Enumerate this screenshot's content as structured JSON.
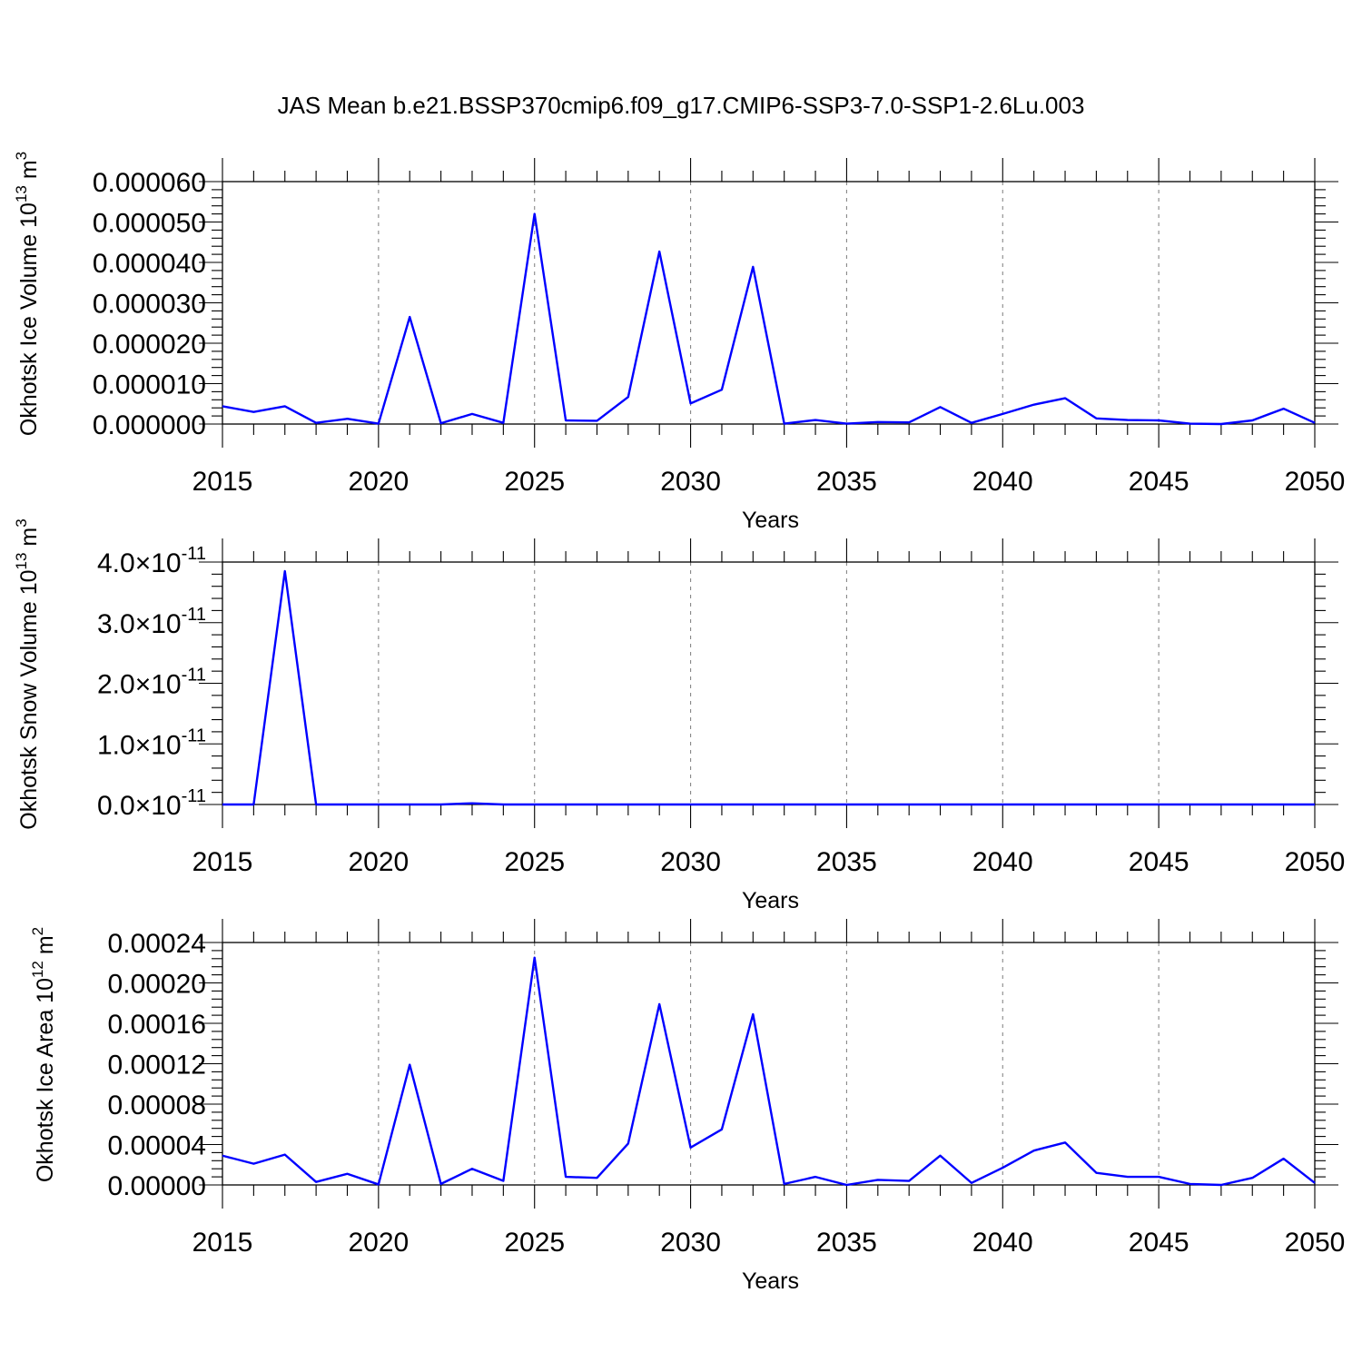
{
  "title": "JAS Mean b.e21.BSSP370cmip6.f09_g17.CMIP6-SSP3-7.0-SSP1-2.6Lu.003",
  "colors": {
    "line": "#0000ff",
    "grid": "#888888",
    "axis": "#000000"
  },
  "chart_data": [
    {
      "type": "line",
      "xlabel": "Years",
      "ylabel": "Okhotsk Ice Volume 10",
      "ylabel_sup": "13",
      "ylabel_unit": "m",
      "ylabel_unit_sup": "3",
      "xlim": [
        2015,
        2050
      ],
      "ylim": [
        0,
        6e-05
      ],
      "xticks": [
        "2015",
        "2020",
        "2025",
        "2030",
        "2035",
        "2040",
        "2045",
        "2050"
      ],
      "yticks": [
        {
          "value": 0,
          "label": "0.000000"
        },
        {
          "value": 1e-05,
          "label": "0.000010"
        },
        {
          "value": 2e-05,
          "label": "0.000020"
        },
        {
          "value": 3e-05,
          "label": "0.000030"
        },
        {
          "value": 4e-05,
          "label": "0.000040"
        },
        {
          "value": 5e-05,
          "label": "0.000050"
        },
        {
          "value": 6e-05,
          "label": "0.000060"
        }
      ],
      "grid_x": true,
      "series": [
        {
          "x": [
            2015,
            2016,
            2017,
            2018,
            2019,
            2020,
            2021,
            2022,
            2023,
            2024,
            2025,
            2026,
            2027,
            2028,
            2029,
            2030,
            2031,
            2032,
            2033,
            2034,
            2035,
            2036,
            2037,
            2038,
            2039,
            2040,
            2041,
            2042,
            2043,
            2044,
            2045,
            2046,
            2047,
            2048,
            2049,
            2050
          ],
          "y": [
            4.4e-06,
            3e-06,
            4.4e-06,
            3e-07,
            1.3e-06,
            1e-07,
            2.65e-05,
            2e-07,
            2.5e-06,
            3e-07,
            5.2e-05,
            9e-07,
            8e-07,
            6.7e-06,
            4.27e-05,
            5.1e-06,
            8.5e-06,
            3.89e-05,
            1e-07,
            1e-06,
            1e-07,
            5e-07,
            4e-07,
            4.2e-06,
            3e-07,
            2.5e-06,
            4.8e-06,
            6.4e-06,
            1.4e-06,
            1e-06,
            9e-07,
            1e-07,
            0.0,
            9e-07,
            3.8e-06,
            3e-07
          ]
        }
      ]
    },
    {
      "type": "line",
      "xlabel": "Years",
      "ylabel": "Okhotsk Snow Volume 10",
      "ylabel_sup": "13",
      "ylabel_unit": "m",
      "ylabel_unit_sup": "3",
      "xlim": [
        2015,
        2050
      ],
      "ylim": [
        0,
        4e-11
      ],
      "xticks": [
        "2015",
        "2020",
        "2025",
        "2030",
        "2035",
        "2040",
        "2045",
        "2050"
      ],
      "yticks": [
        {
          "value": 0,
          "label": "0.0×10",
          "exp": "-11"
        },
        {
          "value": 1e-11,
          "label": "1.0×10",
          "exp": "-11"
        },
        {
          "value": 2e-11,
          "label": "2.0×10",
          "exp": "-11"
        },
        {
          "value": 3e-11,
          "label": "3.0×10",
          "exp": "-11"
        },
        {
          "value": 4e-11,
          "label": "4.0×10",
          "exp": "-11"
        }
      ],
      "grid_x": true,
      "series": [
        {
          "x": [
            2015,
            2016,
            2017,
            2018,
            2019,
            2020,
            2021,
            2022,
            2023,
            2024,
            2025,
            2026,
            2027,
            2028,
            2029,
            2030,
            2031,
            2032,
            2033,
            2034,
            2035,
            2036,
            2037,
            2038,
            2039,
            2040,
            2041,
            2042,
            2043,
            2044,
            2045,
            2046,
            2047,
            2048,
            2049,
            2050
          ],
          "y": [
            0,
            0,
            3.85e-11,
            0,
            0,
            0,
            0,
            0,
            2e-13,
            0,
            0,
            0,
            0,
            0,
            0,
            0,
            0,
            0,
            0,
            0,
            0,
            0,
            0,
            0,
            0,
            0,
            0,
            0,
            0,
            0,
            0,
            0,
            0,
            0,
            0,
            0
          ]
        }
      ]
    },
    {
      "type": "line",
      "xlabel": "Years",
      "ylabel": "Okhotsk Ice Area 10",
      "ylabel_sup": "12",
      "ylabel_unit": "m",
      "ylabel_unit_sup": "2",
      "xlim": [
        2015,
        2050
      ],
      "ylim": [
        0,
        0.00024
      ],
      "xticks": [
        "2015",
        "2020",
        "2025",
        "2030",
        "2035",
        "2040",
        "2045",
        "2050"
      ],
      "yticks": [
        {
          "value": 0,
          "label": "0.00000"
        },
        {
          "value": 4e-05,
          "label": "0.00004"
        },
        {
          "value": 8e-05,
          "label": "0.00008"
        },
        {
          "value": 0.00012,
          "label": "0.00012"
        },
        {
          "value": 0.00016,
          "label": "0.00016"
        },
        {
          "value": 0.0002,
          "label": "0.00020"
        },
        {
          "value": 0.00024,
          "label": "0.00024"
        }
      ],
      "grid_x": true,
      "series": [
        {
          "x": [
            2015,
            2016,
            2017,
            2018,
            2019,
            2020,
            2021,
            2022,
            2023,
            2024,
            2025,
            2026,
            2027,
            2028,
            2029,
            2030,
            2031,
            2032,
            2033,
            2034,
            2035,
            2036,
            2037,
            2038,
            2039,
            2040,
            2041,
            2042,
            2043,
            2044,
            2045,
            2046,
            2047,
            2048,
            2049,
            2050
          ],
          "y": [
            2.9e-05,
            2.1e-05,
            3e-05,
            3e-06,
            1.1e-05,
            5e-07,
            0.000119,
            1e-06,
            1.6e-05,
            4e-06,
            0.000225,
            8e-06,
            7e-06,
            4.1e-05,
            0.000179,
            3.7e-05,
            5.5e-05,
            0.000169,
            1e-06,
            8e-06,
            0.0,
            5e-06,
            4e-06,
            2.9e-05,
            2e-06,
            1.7e-05,
            3.4e-05,
            4.2e-05,
            1.2e-05,
            8e-06,
            8e-06,
            1e-06,
            0.0,
            7e-06,
            2.6e-05,
            2e-06
          ]
        }
      ]
    }
  ]
}
